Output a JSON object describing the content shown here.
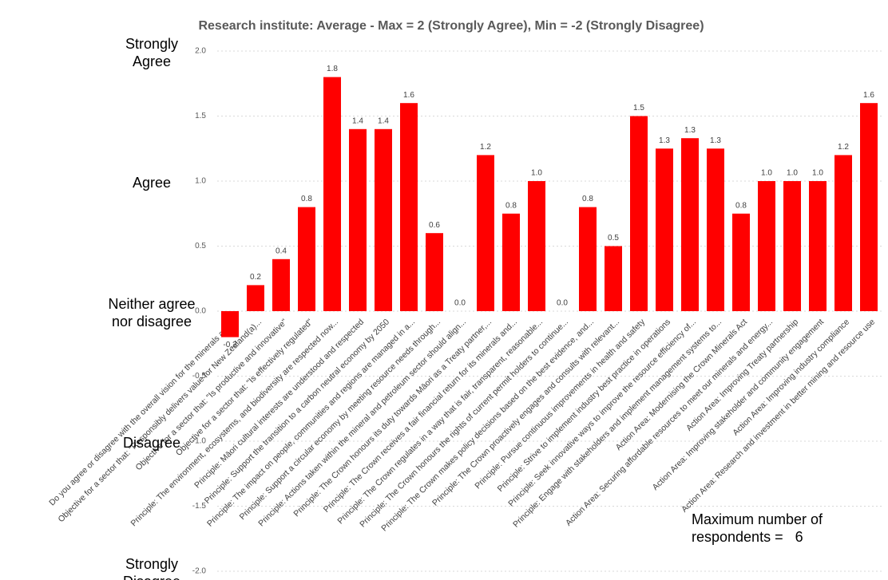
{
  "chart_data": {
    "type": "bar",
    "title": "Research institute: Average - Max = 2 (Strongly Agree), Min = -2 (Strongly Disagree)",
    "categories": [
      "Do you agree or disagree with the overall vision for the minerals and...",
      "Objective for a sector that: \"Responsibly delivers value for New Zealand(a)...",
      "Objective for a sector that: \"Is productive and innovative\"",
      "Objective for a sector that: \"Is effectively regulated\"",
      "Principle: The environment, ecosystems, and biodiversity are respected now...",
      "Principle: Māori cultural interests are understood and respected",
      "Principle: Support the transition to a carbon neutral economy by 2050",
      "Principle: The impact on people, communities and regions are managed in a...",
      "Principle: Support a circular economy by meeting resource needs through...",
      "Principle: Actions taken within the mineral and petroleum sector should align...",
      "Principle: The Crown honours its duty towards Māori as a Treaty partner,...",
      "Principle: The Crown receives a fair financial return for its minerals and...",
      "Principle: The Crown regulates in a way that is fair, transparent, reasonable...",
      "Principle: The Crown honours the rights of current permit holders to continue...",
      "Principle: The Crown makes policy decisions based on the best evidence, and...",
      "Principle: The Crown proactively engages and consults with relevant...",
      "Principle: Pursue continuous improvements in health and safety",
      "Principle: Strive to implement industry best practice in operations",
      "Principle: Seek innovative ways to improve the resource efficiency of...",
      "Principle: Engage with stakeholders and implement management systems to...",
      "Action Area: Modernising the Crown Minerals Act",
      "Action Area: Securing affordable resources to meet our minerals and energy...",
      "Action Area: Improving Treaty partnership",
      "Action Area: Improving stakeholder and community engagement",
      "Action Area: Improving industry compliance",
      "Action Area: Research and investment in better mining and resource use"
    ],
    "values": [
      -0.2,
      0.2,
      0.4,
      0.8,
      1.8,
      1.4,
      1.4,
      1.6,
      0.6,
      0,
      1.2,
      0.75,
      1,
      0,
      0.8,
      0.5,
      1.5,
      1.25,
      1.33,
      1.25,
      0.75,
      1,
      1,
      1,
      1.2,
      1.6
    ],
    "value_labels": [
      "-0.2",
      "0.2",
      "0.4",
      "0.8",
      "1.8",
      "1.4",
      "1.4",
      "1.6",
      "0.6",
      "0.0",
      "1.2",
      "0.8",
      "1.0",
      "0.0",
      "0.8",
      "0.5",
      "1.5",
      "1.3",
      "1.3",
      "1.3",
      "0.8",
      "1.0",
      "1.0",
      "1.0",
      "1.2",
      "1.6"
    ],
    "color": "#ff0000",
    "ylim": [
      -2,
      2
    ],
    "yticks": [
      {
        "value": -2,
        "label": "-2.0"
      },
      {
        "value": -1.5,
        "label": "-1.5"
      },
      {
        "value": -1,
        "label": "-1.0"
      },
      {
        "value": -0.5,
        "label": "-0.5"
      },
      {
        "value": 0,
        "label": "0.0"
      },
      {
        "value": 0.5,
        "label": "0.5"
      },
      {
        "value": 1,
        "label": "1.0"
      },
      {
        "value": 1.5,
        "label": "1.5"
      },
      {
        "value": 2,
        "label": "2.0"
      }
    ],
    "grid": true,
    "scale_labels": [
      {
        "value": 2,
        "label": "Strongly Agree"
      },
      {
        "value": 1,
        "label": "Agree"
      },
      {
        "value": 0,
        "label": "Neither agree nor disagree"
      },
      {
        "value": -1,
        "label": "Disagree"
      },
      {
        "value": -2,
        "label": "Strongly Disagree"
      }
    ],
    "annotation": "Maximum number of respondents =   6"
  }
}
